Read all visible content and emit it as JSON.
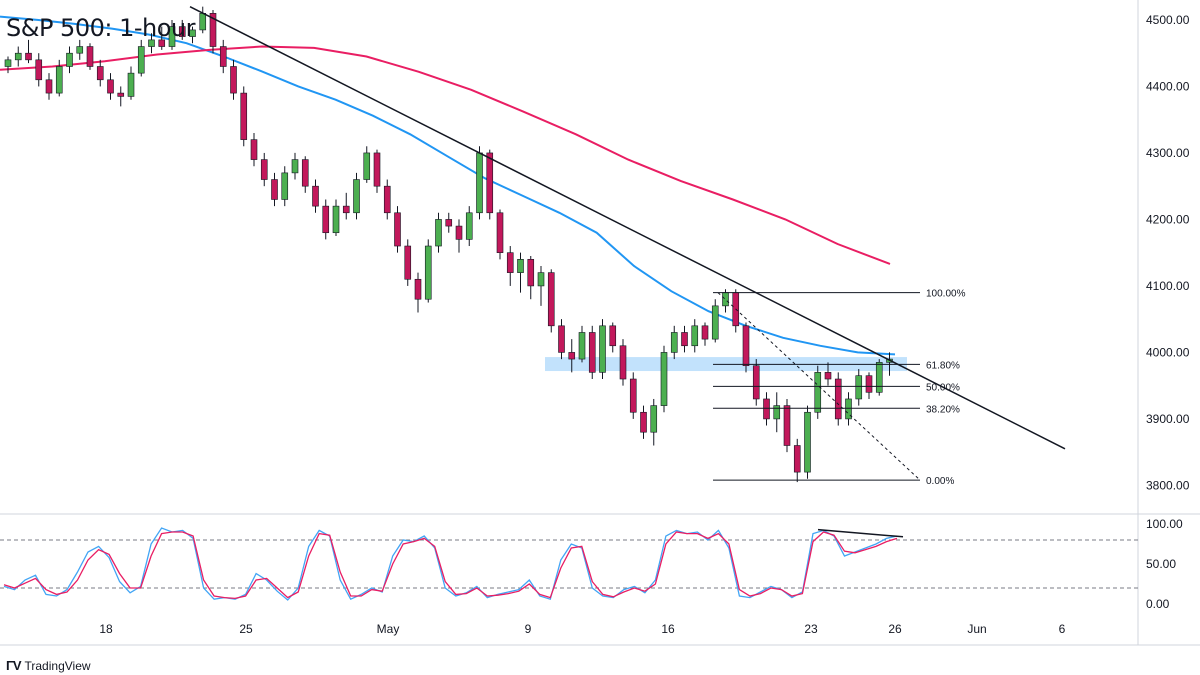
{
  "chart_data": {
    "type": "candlestick",
    "title": "S&P 500: 1-hour",
    "price_axis": {
      "ylim": [
        3760,
        4530
      ],
      "ticks": [
        {
          "value": 4500,
          "label": "4500.00"
        },
        {
          "value": 4400,
          "label": "4400.00"
        },
        {
          "value": 4300,
          "label": "4300.00"
        },
        {
          "value": 4200,
          "label": "4200.00"
        },
        {
          "value": 4100,
          "label": "4100.00"
        },
        {
          "value": 4000,
          "label": "4000.00"
        },
        {
          "value": 3900,
          "label": "3900.00"
        },
        {
          "value": 3800,
          "label": "3800.00"
        }
      ]
    },
    "time_axis": {
      "ticks": [
        "18",
        "25",
        "May",
        "9",
        "16",
        "23",
        "26",
        "Jun",
        "6"
      ]
    },
    "candles": [
      [
        4430,
        4445,
        4420,
        4440
      ],
      [
        4440,
        4460,
        4430,
        4450
      ],
      [
        4450,
        4470,
        4435,
        4440
      ],
      [
        4440,
        4450,
        4400,
        4410
      ],
      [
        4410,
        4420,
        4380,
        4390
      ],
      [
        4390,
        4440,
        4385,
        4430
      ],
      [
        4430,
        4460,
        4420,
        4450
      ],
      [
        4450,
        4470,
        4440,
        4460
      ],
      [
        4460,
        4465,
        4425,
        4430
      ],
      [
        4430,
        4440,
        4400,
        4410
      ],
      [
        4410,
        4420,
        4380,
        4390
      ],
      [
        4390,
        4400,
        4370,
        4385
      ],
      [
        4385,
        4430,
        4380,
        4420
      ],
      [
        4420,
        4470,
        4415,
        4460
      ],
      [
        4460,
        4480,
        4450,
        4470
      ],
      [
        4470,
        4490,
        4455,
        4460
      ],
      [
        4460,
        4500,
        4455,
        4490
      ],
      [
        4490,
        4500,
        4470,
        4475
      ],
      [
        4475,
        4490,
        4465,
        4485
      ],
      [
        4485,
        4520,
        4480,
        4510
      ],
      [
        4510,
        4515,
        4450,
        4460
      ],
      [
        4460,
        4470,
        4420,
        4430
      ],
      [
        4430,
        4440,
        4380,
        4390
      ],
      [
        4390,
        4400,
        4310,
        4320
      ],
      [
        4320,
        4330,
        4280,
        4290
      ],
      [
        4290,
        4300,
        4250,
        4260
      ],
      [
        4260,
        4270,
        4220,
        4230
      ],
      [
        4230,
        4280,
        4220,
        4270
      ],
      [
        4270,
        4300,
        4260,
        4290
      ],
      [
        4290,
        4295,
        4240,
        4250
      ],
      [
        4250,
        4260,
        4210,
        4220
      ],
      [
        4220,
        4230,
        4170,
        4180
      ],
      [
        4180,
        4230,
        4175,
        4220
      ],
      [
        4220,
        4240,
        4200,
        4210
      ],
      [
        4210,
        4270,
        4200,
        4260
      ],
      [
        4260,
        4310,
        4255,
        4300
      ],
      [
        4300,
        4305,
        4240,
        4250
      ],
      [
        4250,
        4260,
        4200,
        4210
      ],
      [
        4210,
        4220,
        4150,
        4160
      ],
      [
        4160,
        4170,
        4100,
        4110
      ],
      [
        4110,
        4120,
        4060,
        4080
      ],
      [
        4080,
        4170,
        4075,
        4160
      ],
      [
        4160,
        4210,
        4150,
        4200
      ],
      [
        4200,
        4210,
        4180,
        4190
      ],
      [
        4190,
        4200,
        4150,
        4170
      ],
      [
        4170,
        4220,
        4160,
        4210
      ],
      [
        4210,
        4310,
        4200,
        4300
      ],
      [
        4300,
        4305,
        4200,
        4210
      ],
      [
        4210,
        4215,
        4140,
        4150
      ],
      [
        4150,
        4160,
        4100,
        4120
      ],
      [
        4120,
        4150,
        4090,
        4140
      ],
      [
        4140,
        4145,
        4080,
        4100
      ],
      [
        4100,
        4130,
        4070,
        4120
      ],
      [
        4120,
        4125,
        4030,
        4040
      ],
      [
        4040,
        4050,
        3990,
        4000
      ],
      [
        4000,
        4020,
        3970,
        3990
      ],
      [
        3990,
        4040,
        3985,
        4030
      ],
      [
        4030,
        4040,
        3960,
        3970
      ],
      [
        3970,
        4050,
        3960,
        4040
      ],
      [
        4040,
        4045,
        4000,
        4010
      ],
      [
        4010,
        4020,
        3950,
        3960
      ],
      [
        3960,
        3970,
        3900,
        3910
      ],
      [
        3910,
        3920,
        3870,
        3880
      ],
      [
        3880,
        3930,
        3860,
        3920
      ],
      [
        3920,
        4010,
        3910,
        4000
      ],
      [
        4000,
        4040,
        3990,
        4030
      ],
      [
        4030,
        4040,
        4000,
        4010
      ],
      [
        4010,
        4050,
        4000,
        4040
      ],
      [
        4040,
        4045,
        4010,
        4020
      ],
      [
        4020,
        4080,
        4015,
        4070
      ],
      [
        4070,
        4095,
        4060,
        4090
      ],
      [
        4090,
        4095,
        4030,
        4040
      ],
      [
        4040,
        4045,
        3970,
        3980
      ],
      [
        3980,
        3990,
        3920,
        3930
      ],
      [
        3930,
        3940,
        3890,
        3900
      ],
      [
        3900,
        3940,
        3880,
        3920
      ],
      [
        3920,
        3930,
        3850,
        3860
      ],
      [
        3860,
        3870,
        3805,
        3820
      ],
      [
        3820,
        3920,
        3810,
        3910
      ],
      [
        3910,
        3980,
        3900,
        3970
      ],
      [
        3970,
        3985,
        3950,
        3960
      ],
      [
        3960,
        3970,
        3890,
        3900
      ],
      [
        3900,
        3940,
        3890,
        3930
      ],
      [
        3930,
        3975,
        3920,
        3965
      ],
      [
        3965,
        3970,
        3930,
        3940
      ],
      [
        3940,
        3990,
        3935,
        3985
      ],
      [
        3985,
        4000,
        3965,
        3990
      ]
    ],
    "series": [
      {
        "name": "",
        "color": "#2196f3",
        "values": [
          4505,
          4500,
          4494,
          4487,
          4478,
          4465,
          4445,
          4423,
          4400,
          4380,
          4356,
          4328,
          4295,
          4262,
          4236,
          4210,
          4180,
          4130,
          4092,
          4062,
          4040,
          4022,
          4010,
          4000,
          3997
        ]
      },
      {
        "name": "",
        "color": "#e91e63",
        "values": [
          4425,
          4430,
          4438,
          4448,
          4455,
          4460,
          4458,
          4445,
          4422,
          4395,
          4362,
          4328,
          4290,
          4258,
          4230,
          4200,
          4163,
          4133
        ]
      }
    ],
    "trendline": {
      "from": [
        0.19,
        4520
      ],
      "to": [
        1.065,
        3855
      ]
    },
    "fibonacci": {
      "levels": [
        {
          "ratio": "100.00%",
          "value": 4090
        },
        {
          "ratio": "61.80%",
          "value": 3982
        },
        {
          "ratio": "50.00%",
          "value": 3949
        },
        {
          "ratio": "38.20%",
          "value": 3916
        },
        {
          "ratio": "0.00%",
          "value": 3808
        }
      ]
    },
    "resistance_zone": {
      "top": 3993,
      "bottom": 3972
    },
    "stochastic": {
      "ylim": [
        -10,
        110
      ],
      "ticks": [
        {
          "value": 100,
          "label": "100.00"
        },
        {
          "value": 50,
          "label": "50.00"
        },
        {
          "value": 0,
          "label": "0.00"
        }
      ],
      "overbought": 80,
      "oversold": 20,
      "k": [
        22,
        18,
        30,
        36,
        12,
        10,
        18,
        40,
        65,
        72,
        58,
        28,
        14,
        22,
        75,
        95,
        90,
        92,
        82,
        20,
        6,
        8,
        6,
        12,
        38,
        30,
        16,
        5,
        20,
        72,
        92,
        85,
        30,
        6,
        12,
        20,
        15,
        60,
        80,
        78,
        85,
        70,
        20,
        10,
        14,
        22,
        8,
        12,
        15,
        18,
        30,
        10,
        6,
        55,
        75,
        70,
        20,
        10,
        8,
        18,
        22,
        14,
        30,
        85,
        92,
        88,
        90,
        80,
        92,
        70,
        10,
        8,
        15,
        22,
        18,
        8,
        15,
        88,
        92,
        85,
        60,
        65,
        70,
        75,
        82,
        85
      ],
      "d": [
        24,
        20,
        26,
        32,
        18,
        12,
        15,
        30,
        55,
        68,
        62,
        38,
        20,
        20,
        60,
        88,
        90,
        90,
        85,
        30,
        10,
        8,
        7,
        10,
        30,
        32,
        20,
        8,
        15,
        60,
        88,
        86,
        40,
        10,
        10,
        18,
        16,
        50,
        75,
        78,
        82,
        72,
        28,
        12,
        13,
        20,
        10,
        11,
        13,
        16,
        25,
        12,
        8,
        45,
        70,
        72,
        28,
        12,
        9,
        15,
        20,
        16,
        25,
        75,
        90,
        88,
        88,
        82,
        88,
        75,
        18,
        10,
        13,
        20,
        18,
        10,
        13,
        78,
        90,
        86,
        66,
        64,
        68,
        72,
        78,
        82
      ],
      "divergence_line": {
        "from": 93,
        "to": 84
      }
    }
  },
  "footer": {
    "brand": "TradingView"
  }
}
